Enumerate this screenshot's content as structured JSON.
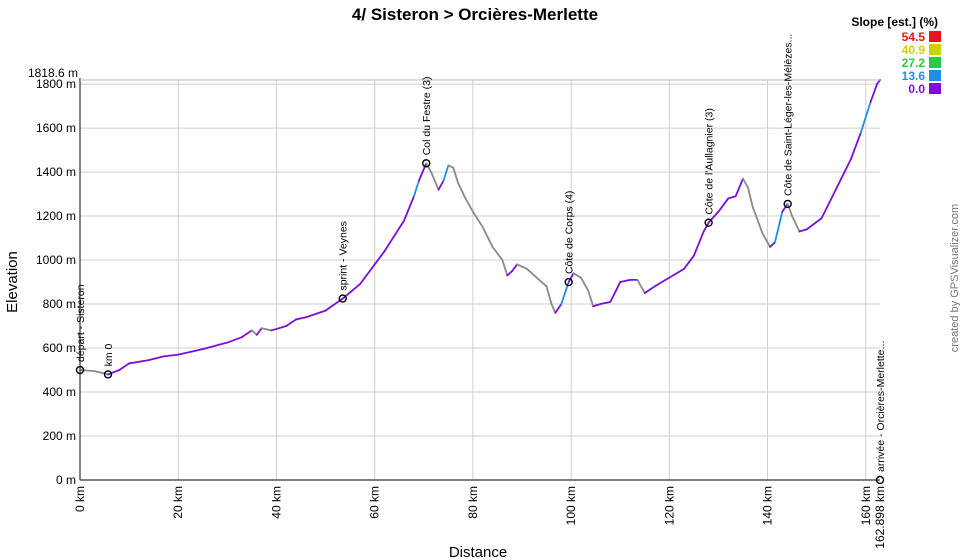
{
  "chart_data": {
    "type": "area",
    "title": "4/ Sisteron > Orcières-Merlette",
    "xlabel": "Distance",
    "ylabel": "Elevation",
    "x_unit": "km",
    "y_unit": "m",
    "xlim": [
      0,
      162.898
    ],
    "ylim": [
      0,
      1818.6
    ],
    "max_label": "1818.6 m",
    "end_label": "162.898 km",
    "x_ticks": [
      0,
      20,
      40,
      60,
      80,
      100,
      120,
      140,
      160
    ],
    "x_tick_labels": [
      "0 km",
      "20 km",
      "40 km",
      "60 km",
      "80 km",
      "100 km",
      "120 km",
      "140 km",
      "160 km"
    ],
    "y_ticks": [
      0,
      200,
      400,
      600,
      800,
      1000,
      1200,
      1400,
      1600,
      1800
    ],
    "y_tick_labels": [
      "0 m",
      "200 m",
      "400 m",
      "600 m",
      "800 m",
      "1000 m",
      "1200 m",
      "1400 m",
      "1600 m",
      "1800 m"
    ],
    "grid": true,
    "legend_position": "top-right",
    "legend": {
      "title": "Slope [est.] (%)",
      "entries": [
        {
          "label": "54.5",
          "color": "#e8141b"
        },
        {
          "label": "40.9",
          "color": "#c8d400"
        },
        {
          "label": "27.2",
          "color": "#22cc44"
        },
        {
          "label": "13.6",
          "color": "#1f8fe0"
        },
        {
          "label": "0.0",
          "color": "#7a10d8"
        }
      ]
    },
    "profile": [
      {
        "x": 0,
        "y": 500
      },
      {
        "x": 3,
        "y": 495
      },
      {
        "x": 5.7,
        "y": 480
      },
      {
        "x": 8,
        "y": 500
      },
      {
        "x": 10,
        "y": 530
      },
      {
        "x": 14,
        "y": 545
      },
      {
        "x": 17,
        "y": 562
      },
      {
        "x": 20,
        "y": 570
      },
      {
        "x": 25,
        "y": 595
      },
      {
        "x": 30,
        "y": 625
      },
      {
        "x": 33,
        "y": 650
      },
      {
        "x": 35,
        "y": 680
      },
      {
        "x": 36,
        "y": 660
      },
      {
        "x": 37,
        "y": 690
      },
      {
        "x": 39,
        "y": 680
      },
      {
        "x": 42,
        "y": 700
      },
      {
        "x": 44,
        "y": 730
      },
      {
        "x": 46,
        "y": 740
      },
      {
        "x": 50,
        "y": 770
      },
      {
        "x": 53.5,
        "y": 825
      },
      {
        "x": 57,
        "y": 890
      },
      {
        "x": 60,
        "y": 980
      },
      {
        "x": 62,
        "y": 1040
      },
      {
        "x": 64,
        "y": 1110
      },
      {
        "x": 66,
        "y": 1180
      },
      {
        "x": 68,
        "y": 1290
      },
      {
        "x": 69,
        "y": 1360
      },
      {
        "x": 70.5,
        "y": 1440
      },
      {
        "x": 71.5,
        "y": 1400
      },
      {
        "x": 73,
        "y": 1320
      },
      {
        "x": 74,
        "y": 1360
      },
      {
        "x": 75,
        "y": 1430
      },
      {
        "x": 76,
        "y": 1420
      },
      {
        "x": 77,
        "y": 1350
      },
      {
        "x": 78.5,
        "y": 1280
      },
      {
        "x": 80,
        "y": 1220
      },
      {
        "x": 82,
        "y": 1150
      },
      {
        "x": 84,
        "y": 1060
      },
      {
        "x": 86,
        "y": 1000
      },
      {
        "x": 87,
        "y": 930
      },
      {
        "x": 88,
        "y": 950
      },
      {
        "x": 89,
        "y": 980
      },
      {
        "x": 91,
        "y": 960
      },
      {
        "x": 93,
        "y": 920
      },
      {
        "x": 95,
        "y": 880
      },
      {
        "x": 96,
        "y": 800
      },
      {
        "x": 96.8,
        "y": 760
      },
      {
        "x": 98,
        "y": 800
      },
      {
        "x": 99.5,
        "y": 900
      },
      {
        "x": 100.5,
        "y": 940
      },
      {
        "x": 102,
        "y": 920
      },
      {
        "x": 103.5,
        "y": 860
      },
      {
        "x": 104.5,
        "y": 790
      },
      {
        "x": 106,
        "y": 800
      },
      {
        "x": 108,
        "y": 810
      },
      {
        "x": 110,
        "y": 900
      },
      {
        "x": 112,
        "y": 910
      },
      {
        "x": 113.5,
        "y": 910
      },
      {
        "x": 115,
        "y": 850
      },
      {
        "x": 117,
        "y": 880
      },
      {
        "x": 120,
        "y": 920
      },
      {
        "x": 123,
        "y": 960
      },
      {
        "x": 125,
        "y": 1020
      },
      {
        "x": 127,
        "y": 1130
      },
      {
        "x": 128,
        "y": 1170
      },
      {
        "x": 130,
        "y": 1220
      },
      {
        "x": 132,
        "y": 1280
      },
      {
        "x": 133.5,
        "y": 1290
      },
      {
        "x": 135,
        "y": 1370
      },
      {
        "x": 136,
        "y": 1330
      },
      {
        "x": 137,
        "y": 1240
      },
      {
        "x": 139,
        "y": 1120
      },
      {
        "x": 140.5,
        "y": 1060
      },
      {
        "x": 141.5,
        "y": 1080
      },
      {
        "x": 143,
        "y": 1220
      },
      {
        "x": 144.1,
        "y": 1255
      },
      {
        "x": 145,
        "y": 1200
      },
      {
        "x": 146.5,
        "y": 1130
      },
      {
        "x": 148,
        "y": 1140
      },
      {
        "x": 151,
        "y": 1190
      },
      {
        "x": 153,
        "y": 1280
      },
      {
        "x": 155,
        "y": 1370
      },
      {
        "x": 157,
        "y": 1460
      },
      {
        "x": 159,
        "y": 1580
      },
      {
        "x": 161,
        "y": 1720
      },
      {
        "x": 162.3,
        "y": 1800
      },
      {
        "x": 162.898,
        "y": 1818.6
      }
    ],
    "waypoints": [
      {
        "x": 0,
        "y": 500,
        "label": "départ - Sisteron"
      },
      {
        "x": 5.7,
        "y": 480,
        "label": "km 0"
      },
      {
        "x": 53.5,
        "y": 825,
        "label": "sprint - Veynes"
      },
      {
        "x": 70.5,
        "y": 1440,
        "label": "Col du Festre (3)"
      },
      {
        "x": 99.5,
        "y": 900,
        "label": "Côte de Corps (4)"
      },
      {
        "x": 128,
        "y": 1170,
        "label": "Côte de l'Aullagnier (3)"
      },
      {
        "x": 144.1,
        "y": 1255,
        "label": "Côte de Saint-Léger-les-Mélèzes..."
      },
      {
        "x": 162.898,
        "y": 0,
        "label": "arrivée - Orcières-Merlette..."
      }
    ]
  },
  "credit": "created by GPSVisualizer.com"
}
